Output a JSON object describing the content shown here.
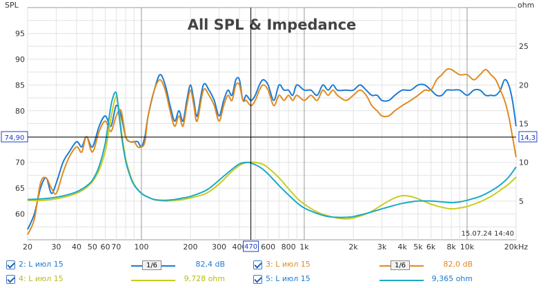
{
  "chart_data": {
    "type": "line",
    "title": "All SPL & Impedance",
    "left_axis": {
      "label": "SPL",
      "min": 55,
      "max": 100,
      "ticks": [
        60,
        65,
        70,
        75,
        80,
        85,
        90,
        95
      ]
    },
    "right_axis": {
      "label": "ohm",
      "min": 0,
      "max": 30,
      "ticks": [
        5,
        10,
        15,
        20,
        25
      ]
    },
    "x_axis": {
      "scale": "log",
      "min": 20,
      "max": 20000,
      "tick_labels": [
        {
          "v": 20,
          "t": "20"
        },
        {
          "v": 30,
          "t": "30"
        },
        {
          "v": 40,
          "t": "40"
        },
        {
          "v": 50,
          "t": "50"
        },
        {
          "v": 60,
          "t": "60"
        },
        {
          "v": 70,
          "t": "70"
        },
        {
          "v": 100,
          "t": "100"
        },
        {
          "v": 200,
          "t": "200"
        },
        {
          "v": 300,
          "t": "300"
        },
        {
          "v": 400,
          "t": "400"
        },
        {
          "v": 600,
          "t": "600"
        },
        {
          "v": 800,
          "t": "800"
        },
        {
          "v": 1000,
          "t": "1k"
        },
        {
          "v": 2000,
          "t": "2k"
        },
        {
          "v": 3000,
          "t": "3k"
        },
        {
          "v": 4000,
          "t": "4k"
        },
        {
          "v": 5000,
          "t": "5k"
        },
        {
          "v": 6000,
          "t": "6k"
        },
        {
          "v": 8000,
          "t": "8k"
        },
        {
          "v": 10000,
          "t": "10k"
        },
        {
          "v": 20000,
          "t": "20kHz"
        }
      ]
    },
    "grid": true,
    "cursor": {
      "x": 470,
      "x_label": "470",
      "y_left_label": "74,90",
      "y_right_label": "14,3",
      "y_left": 74.9
    },
    "timestamp": "15.07.24 14:40",
    "series": [
      {
        "name": "2: L июл 15",
        "axis": "left",
        "color": "#1a7ad4",
        "x": [
          20,
          22,
          24,
          26,
          28,
          30,
          33,
          36,
          40,
          43,
          46,
          50,
          55,
          60,
          65,
          70,
          75,
          80,
          85,
          90,
          95,
          100,
          105,
          110,
          120,
          130,
          140,
          150,
          160,
          170,
          180,
          190,
          200,
          210,
          220,
          240,
          260,
          280,
          300,
          320,
          340,
          360,
          380,
          400,
          420,
          440,
          470,
          500,
          530,
          560,
          600,
          650,
          700,
          750,
          800,
          850,
          900,
          1000,
          1100,
          1200,
          1300,
          1400,
          1500,
          1600,
          1800,
          2000,
          2200,
          2400,
          2600,
          2800,
          3000,
          3300,
          3600,
          4000,
          4500,
          5000,
          5500,
          6000,
          6500,
          7000,
          7500,
          8000,
          9000,
          10000,
          11000,
          12000,
          13000,
          14000,
          15000,
          16000,
          17000,
          18000,
          19000,
          20000
        ],
        "y": [
          57,
          60,
          65,
          67,
          64,
          66,
          70,
          72,
          74,
          73,
          75,
          73,
          77,
          79,
          77,
          81,
          79,
          75,
          74,
          74,
          74,
          73,
          75,
          79,
          84,
          87,
          85,
          81,
          78,
          80,
          78,
          82,
          85,
          82,
          79,
          85,
          84,
          82,
          79,
          82,
          84,
          83,
          86,
          86,
          82,
          83,
          82,
          83,
          85,
          86,
          85,
          82,
          85,
          84,
          84,
          83,
          85,
          84,
          84,
          83,
          85,
          84,
          85,
          84,
          84,
          84,
          85,
          84,
          83,
          83,
          82,
          82,
          83,
          84,
          84,
          85,
          85,
          84,
          83,
          83,
          84,
          84,
          84,
          83,
          84,
          84,
          83,
          83,
          83,
          84,
          86,
          85,
          82,
          77
        ]
      },
      {
        "name": "3: L июл 15",
        "axis": "left",
        "color": "#e08a1e",
        "x": [
          20,
          22,
          24,
          26,
          28,
          30,
          33,
          36,
          40,
          43,
          46,
          50,
          55,
          60,
          65,
          70,
          75,
          80,
          85,
          90,
          95,
          100,
          105,
          110,
          120,
          130,
          140,
          150,
          160,
          170,
          180,
          190,
          200,
          210,
          220,
          240,
          260,
          280,
          300,
          320,
          340,
          360,
          380,
          400,
          420,
          440,
          470,
          500,
          530,
          560,
          600,
          650,
          700,
          750,
          800,
          850,
          900,
          1000,
          1100,
          1200,
          1300,
          1400,
          1500,
          1600,
          1800,
          2000,
          2200,
          2400,
          2600,
          2800,
          3000,
          3300,
          3600,
          4000,
          4500,
          5000,
          5500,
          6000,
          6500,
          7000,
          7500,
          8000,
          9000,
          10000,
          11000,
          12000,
          13000,
          14000,
          15000,
          16000,
          17000,
          18000,
          19000,
          20000
        ],
        "y": [
          56,
          59,
          66,
          67,
          65,
          64,
          68,
          71,
          73,
          72,
          75,
          72,
          76,
          78,
          76,
          79,
          80,
          75,
          74,
          74,
          73,
          73,
          74,
          79,
          84,
          86,
          84,
          80,
          77,
          79,
          77,
          81,
          84,
          81,
          78,
          84,
          83,
          81,
          78,
          81,
          83,
          82,
          85,
          85,
          82,
          82,
          81,
          82,
          84,
          85,
          84,
          81,
          83,
          82,
          83,
          82,
          83,
          82,
          83,
          82,
          84,
          83,
          84,
          83,
          82,
          83,
          84,
          83,
          81,
          80,
          79,
          79,
          80,
          81,
          82,
          83,
          84,
          84,
          86,
          87,
          88,
          88,
          87,
          87,
          86,
          87,
          88,
          87,
          86,
          84,
          82,
          79,
          75,
          71
        ]
      },
      {
        "name": "4: L июл 15",
        "axis": "right",
        "color": "#c8cc1a",
        "x": [
          20,
          25,
          30,
          35,
          40,
          45,
          50,
          55,
          60,
          63,
          66,
          70,
          73,
          76,
          80,
          85,
          90,
          100,
          110,
          120,
          140,
          160,
          180,
          200,
          250,
          300,
          350,
          400,
          450,
          500,
          550,
          600,
          700,
          800,
          900,
          1000,
          1200,
          1400,
          1600,
          1800,
          2000,
          2500,
          3000,
          3500,
          4000,
          4500,
          5000,
          6000,
          7000,
          8000,
          9000,
          10000,
          12000,
          14000,
          16000,
          18000,
          20000
        ],
        "y": [
          5.1,
          5.1,
          5.3,
          5.6,
          6.0,
          6.6,
          7.5,
          9.0,
          11.5,
          14.0,
          16.5,
          18.5,
          16.5,
          13.5,
          10.5,
          8.5,
          7.2,
          6.0,
          5.5,
          5.2,
          5.0,
          5.1,
          5.2,
          5.4,
          6.0,
          7.2,
          8.6,
          9.6,
          10.0,
          10.0,
          9.8,
          9.3,
          8.0,
          6.6,
          5.4,
          4.6,
          3.6,
          3.1,
          2.8,
          2.7,
          2.8,
          3.5,
          4.5,
          5.3,
          5.7,
          5.6,
          5.3,
          4.6,
          4.2,
          4.0,
          4.1,
          4.3,
          4.9,
          5.6,
          6.4,
          7.2,
          8.1
        ]
      },
      {
        "name": "5: L июл 15",
        "axis": "right",
        "color": "#1aa8c8",
        "x": [
          20,
          25,
          30,
          35,
          40,
          45,
          50,
          55,
          60,
          63,
          66,
          70,
          73,
          76,
          80,
          85,
          90,
          100,
          110,
          120,
          140,
          160,
          180,
          200,
          250,
          300,
          350,
          400,
          450,
          500,
          550,
          600,
          700,
          800,
          900,
          1000,
          1200,
          1400,
          1600,
          1800,
          2000,
          2500,
          3000,
          3500,
          4000,
          4500,
          5000,
          6000,
          7000,
          8000,
          9000,
          10000,
          12000,
          14000,
          16000,
          18000,
          20000
        ],
        "y": [
          5.2,
          5.3,
          5.5,
          5.8,
          6.2,
          6.8,
          7.7,
          9.5,
          12.5,
          15.5,
          18.0,
          19.0,
          16.0,
          13.0,
          10.2,
          8.3,
          7.1,
          6.0,
          5.5,
          5.2,
          5.1,
          5.2,
          5.4,
          5.6,
          6.4,
          7.7,
          8.9,
          9.8,
          10.0,
          9.7,
          9.2,
          8.5,
          7.0,
          5.8,
          4.8,
          4.1,
          3.4,
          3.0,
          2.9,
          2.9,
          3.0,
          3.5,
          4.0,
          4.4,
          4.7,
          4.9,
          5.0,
          5.0,
          4.9,
          4.8,
          4.9,
          5.1,
          5.6,
          6.3,
          7.1,
          8.1,
          9.4
        ]
      }
    ]
  },
  "legend": {
    "row1": {
      "a_name": "2: L июл 15",
      "a_smooth": "1/6",
      "a_value": "82,4 dB",
      "b_name": "3: L июл 15",
      "b_smooth": "1/6",
      "b_value": "82,0 dB"
    },
    "row2": {
      "a_name": "4: L июл 15",
      "a_value": "9,728 ohm",
      "b_name": "5: L июл 15",
      "b_value": "9,365 ohm"
    }
  }
}
